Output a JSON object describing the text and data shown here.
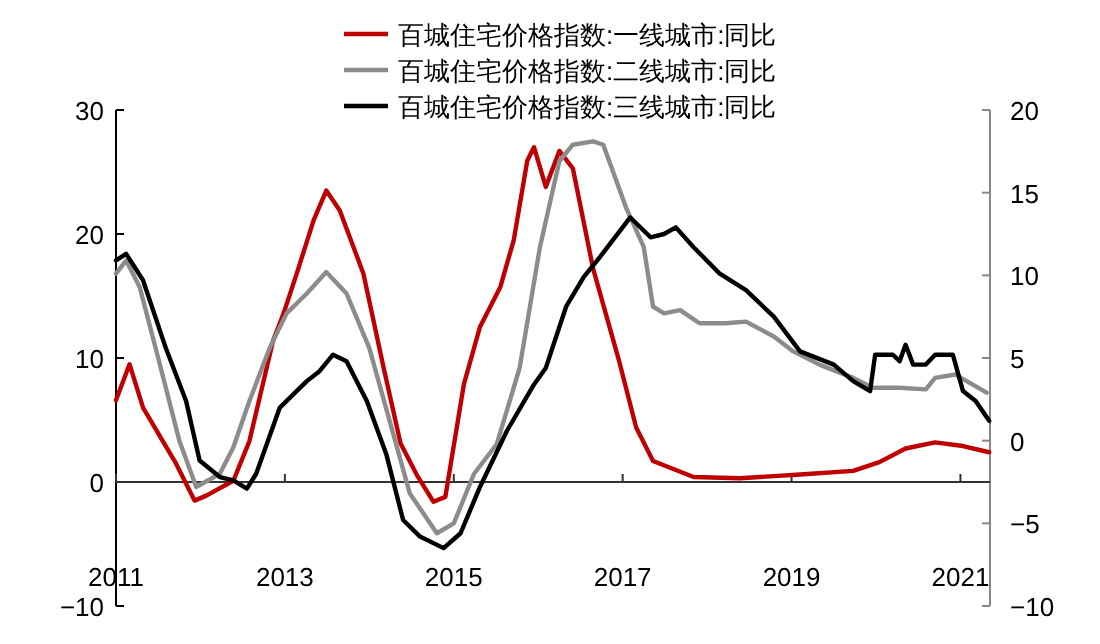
{
  "chart_data": {
    "type": "line",
    "xlim": [
      2011,
      2021.35
    ],
    "xticks": [
      2011,
      2013,
      2015,
      2017,
      2019,
      2021
    ],
    "ylim": [
      -10,
      30
    ],
    "yticks": [
      -10,
      0,
      10,
      20,
      30
    ],
    "y2lim": [
      -10,
      20
    ],
    "y2ticks": [
      -10,
      -5,
      0,
      5,
      10,
      15,
      20
    ],
    "legend": "top",
    "grid": false,
    "ref_lines": [
      {
        "axis": "y",
        "value": 0,
        "color": "#333333"
      }
    ],
    "series": [
      {
        "name": "百城住宅价格指数:一线城市:同比",
        "color": "#c00000",
        "axis": "y",
        "x": [
          2011.0,
          2011.16,
          2011.32,
          2011.71,
          2011.93,
          2012.07,
          2012.39,
          2012.58,
          2012.86,
          2012.98,
          2013.14,
          2013.34,
          2013.49,
          2013.65,
          2013.93,
          2014.17,
          2014.37,
          2014.56,
          2014.76,
          2014.9,
          2015.12,
          2015.31,
          2015.55,
          2015.71,
          2015.87,
          2015.95,
          2016.09,
          2016.25,
          2016.41,
          2016.65,
          2016.96,
          2017.16,
          2017.36,
          2017.84,
          2018.39,
          2019.1,
          2019.73,
          2020.04,
          2020.35,
          2020.7,
          2021.03,
          2021.34
        ],
        "values": [
          6.6,
          9.5,
          6.0,
          1.5,
          -1.5,
          -1.1,
          0.1,
          3.3,
          11.4,
          13.5,
          16.8,
          21.1,
          23.5,
          21.9,
          16.8,
          9.2,
          3.1,
          0.6,
          -1.6,
          -1.2,
          7.9,
          12.5,
          15.7,
          19.5,
          25.9,
          27.0,
          23.8,
          26.7,
          25.3,
          17.2,
          9.7,
          4.4,
          1.7,
          0.4,
          0.3,
          0.6,
          0.9,
          1.6,
          2.7,
          3.2,
          2.9,
          2.4
        ]
      },
      {
        "name": "百城住宅价格指数:二线城市:同比",
        "color": "#8c8c8c",
        "axis": "y2",
        "x": [
          2011.0,
          2011.12,
          2011.28,
          2011.51,
          2011.75,
          2011.95,
          2012.23,
          2012.39,
          2012.58,
          2012.82,
          2013.02,
          2013.26,
          2013.49,
          2013.73,
          2014.0,
          2014.24,
          2014.48,
          2014.8,
          2015.0,
          2015.24,
          2015.51,
          2015.78,
          2016.02,
          2016.25,
          2016.41,
          2016.65,
          2016.77,
          2017.04,
          2017.25,
          2017.36,
          2017.49,
          2017.68,
          2017.91,
          2018.22,
          2018.46,
          2018.79,
          2019.02,
          2019.33,
          2019.73,
          2019.96,
          2020.28,
          2020.59,
          2020.7,
          2020.94,
          2021.31
        ],
        "values": [
          10.1,
          10.9,
          9.3,
          4.8,
          0,
          -2.8,
          -2.0,
          -0.4,
          2.4,
          5.6,
          7.7,
          8.9,
          10.2,
          8.9,
          5.6,
          1.2,
          -3.2,
          -5.6,
          -5.0,
          -2.0,
          -0.2,
          4.4,
          11.7,
          16.9,
          17.9,
          18.1,
          17.9,
          14.1,
          11.7,
          8.1,
          7.7,
          7.9,
          7.1,
          7.1,
          7.2,
          6.3,
          5.4,
          4.6,
          3.8,
          3.2,
          3.2,
          3.1,
          3.8,
          4.0,
          2.9
        ]
      },
      {
        "name": "百城住宅价格指数:三线城市:同比",
        "color": "#000000",
        "axis": "y2",
        "x": [
          2011.0,
          2011.12,
          2011.32,
          2011.59,
          2011.83,
          2011.99,
          2012.23,
          2012.39,
          2012.55,
          2012.66,
          2012.94,
          2013.26,
          2013.41,
          2013.57,
          2013.73,
          2013.97,
          2014.2,
          2014.4,
          2014.6,
          2014.88,
          2015.08,
          2015.31,
          2015.63,
          2015.95,
          2016.09,
          2016.33,
          2016.54,
          2016.73,
          2017.09,
          2017.33,
          2017.49,
          2017.63,
          2017.84,
          2018.15,
          2018.46,
          2018.79,
          2019.1,
          2019.5,
          2019.73,
          2019.93,
          2019.99,
          2020.2,
          2020.28,
          2020.35,
          2020.44,
          2020.59,
          2020.7,
          2020.91,
          2021.03,
          2021.18,
          2021.34
        ],
        "values": [
          10.9,
          11.3,
          9.7,
          5.6,
          2.4,
          -1.2,
          -2.2,
          -2.4,
          -2.9,
          -2.0,
          2.0,
          3.6,
          4.2,
          5.2,
          4.8,
          2.4,
          -0.8,
          -4.8,
          -5.8,
          -6.5,
          -5.6,
          -2.8,
          0.6,
          3.4,
          4.4,
          8.1,
          9.9,
          11.1,
          13.5,
          12.3,
          12.5,
          12.9,
          11.7,
          10.1,
          9.1,
          7.5,
          5.4,
          4.6,
          3.6,
          3.0,
          5.2,
          5.2,
          4.8,
          5.8,
          4.6,
          4.6,
          5.2,
          5.2,
          3.0,
          2.4,
          1.2
        ]
      }
    ]
  }
}
